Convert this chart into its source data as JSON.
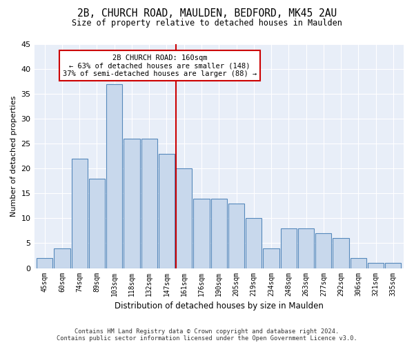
{
  "title_line1": "2B, CHURCH ROAD, MAULDEN, BEDFORD, MK45 2AU",
  "title_line2": "Size of property relative to detached houses in Maulden",
  "xlabel": "Distribution of detached houses by size in Maulden",
  "ylabel": "Number of detached properties",
  "categories": [
    "45sqm",
    "60sqm",
    "74sqm",
    "89sqm",
    "103sqm",
    "118sqm",
    "132sqm",
    "147sqm",
    "161sqm",
    "176sqm",
    "190sqm",
    "205sqm",
    "219sqm",
    "234sqm",
    "248sqm",
    "263sqm",
    "277sqm",
    "292sqm",
    "306sqm",
    "321sqm",
    "335sqm"
  ],
  "bar_values": [
    2,
    4,
    22,
    18,
    37,
    26,
    26,
    23,
    20,
    14,
    14,
    13,
    10,
    4,
    8,
    8,
    7,
    6,
    2,
    1,
    1
  ],
  "property_label": "2B CHURCH ROAD: 160sqm",
  "annotation_line2": "← 63% of detached houses are smaller (148)",
  "annotation_line3": "37% of semi-detached houses are larger (88) →",
  "bar_color": "#c8d8ec",
  "bar_edge_color": "#5588bb",
  "vline_color": "#cc0000",
  "annotation_box_color": "#cc0000",
  "background_color": "#e8eef8",
  "ylim": [
    0,
    45
  ],
  "vline_index": 8,
  "footer_line1": "Contains HM Land Registry data © Crown copyright and database right 2024.",
  "footer_line2": "Contains public sector information licensed under the Open Government Licence v3.0."
}
